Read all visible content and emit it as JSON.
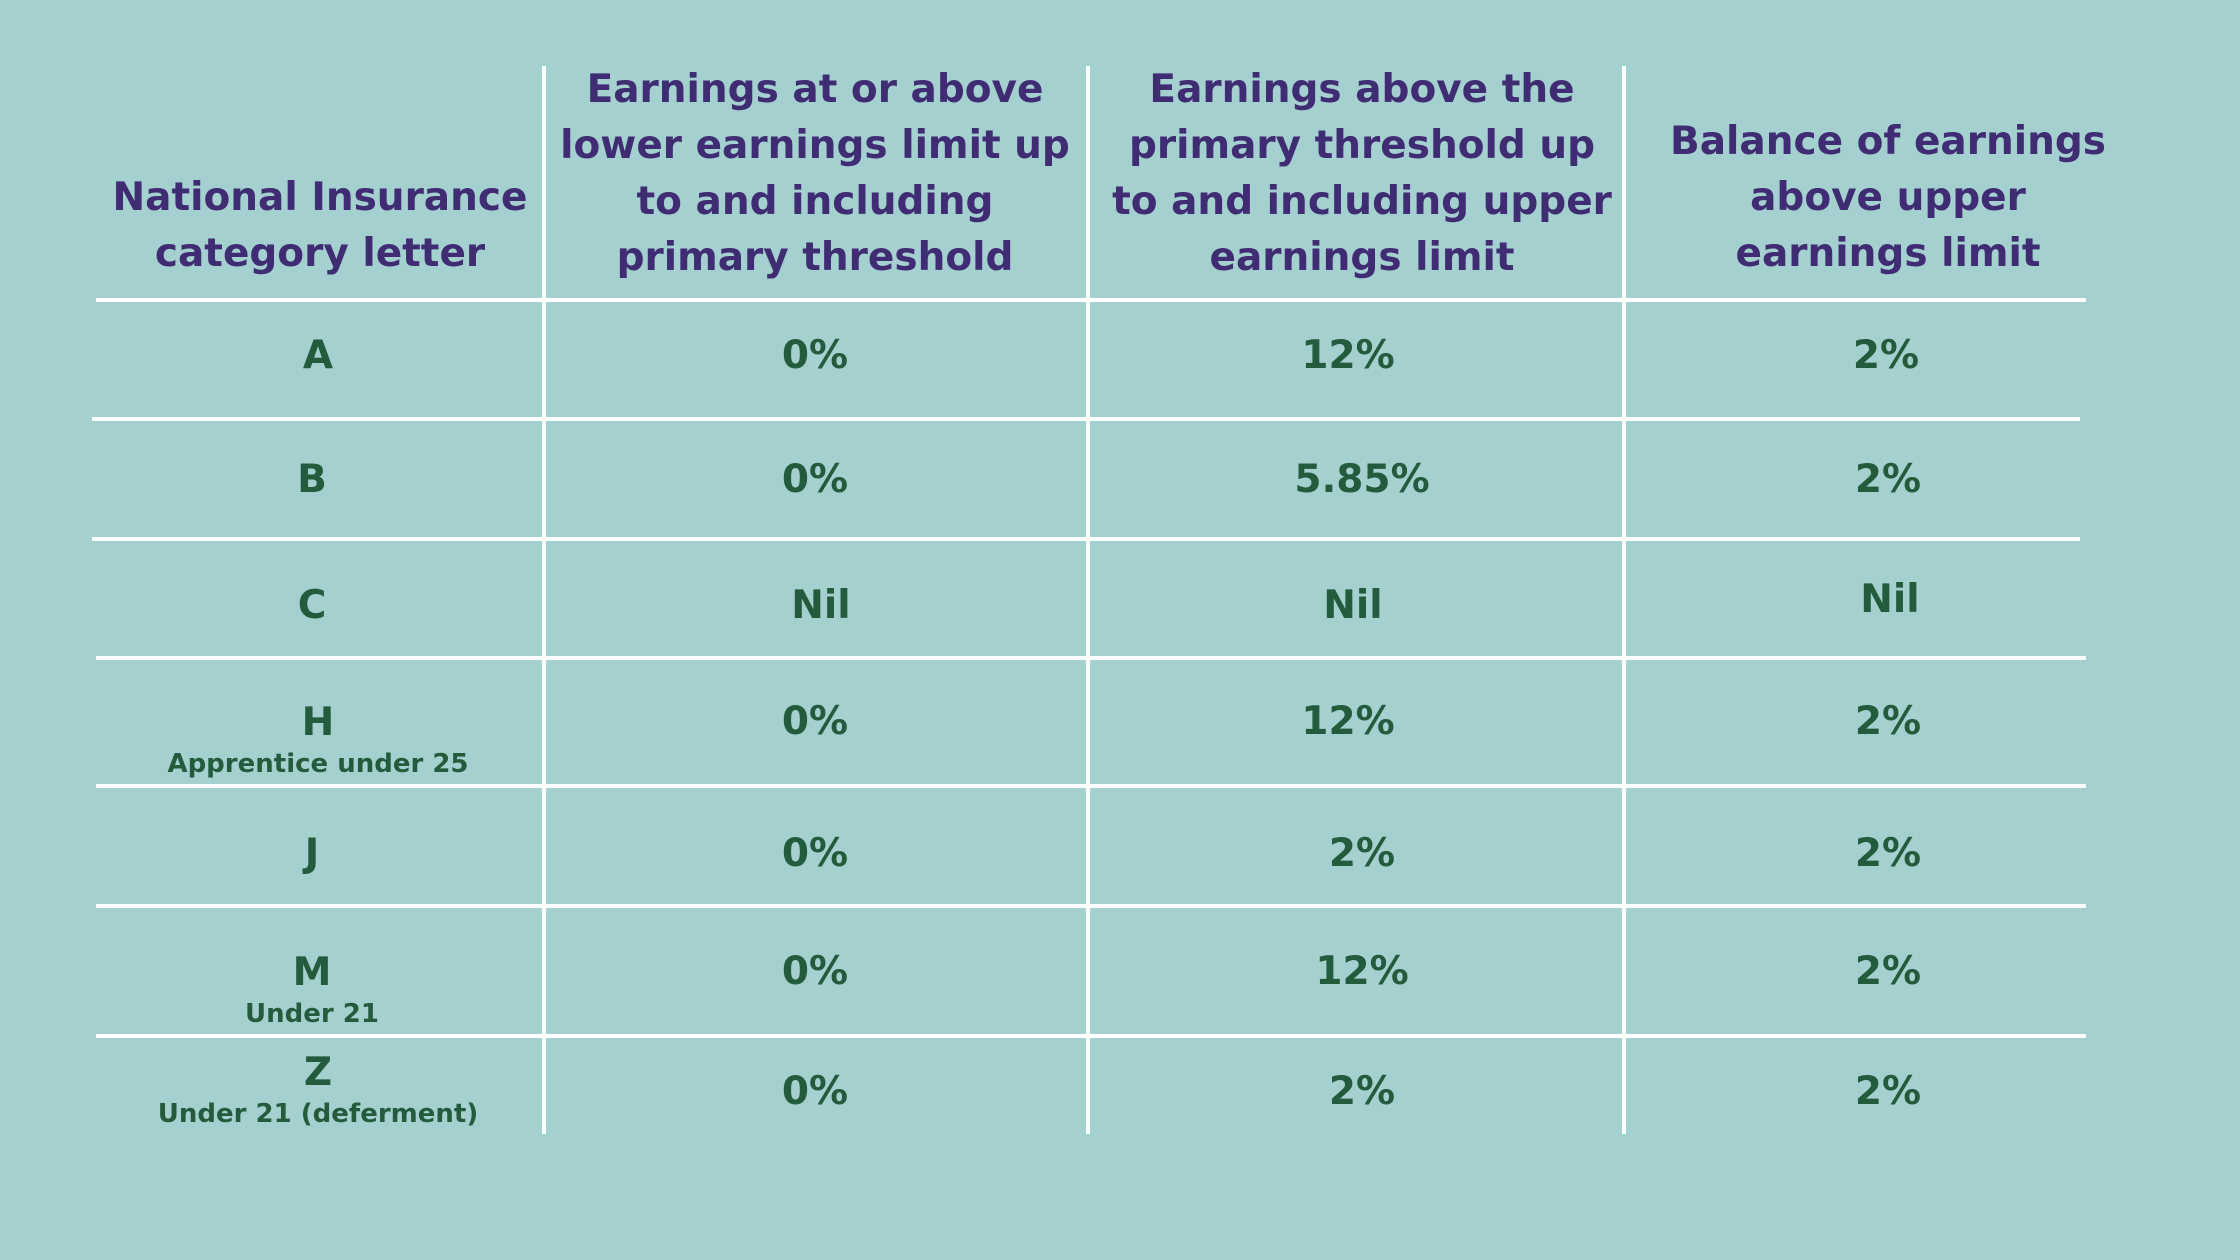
{
  "table": {
    "headers": [
      "National Insurance category letter",
      "Earnings at or above lower earnings limit up to and including primary threshold",
      "Earnings above the primary threshold up to and including upper earnings limit",
      "Balance of earnings above upper earnings limit"
    ],
    "rows": [
      {
        "letter": "A",
        "note": "",
        "lel_pt": "0%",
        "pt_uel": "12%",
        "above_uel": "2%"
      },
      {
        "letter": "B",
        "note": "",
        "lel_pt": "0%",
        "pt_uel": "5.85%",
        "above_uel": "2%"
      },
      {
        "letter": "C",
        "note": "",
        "lel_pt": "Nil",
        "pt_uel": "Nil",
        "above_uel": "Nil"
      },
      {
        "letter": "H",
        "note": "Apprentice under 25",
        "lel_pt": "0%",
        "pt_uel": "12%",
        "above_uel": "2%"
      },
      {
        "letter": "J",
        "note": "",
        "lel_pt": "0%",
        "pt_uel": "2%",
        "above_uel": "2%"
      },
      {
        "letter": "M",
        "note": "Under 21",
        "lel_pt": "0%",
        "pt_uel": "12%",
        "above_uel": "2%"
      },
      {
        "letter": "Z",
        "note": "Under 21 (deferment)",
        "lel_pt": "0%",
        "pt_uel": "2%",
        "above_uel": "2%"
      }
    ]
  },
  "colors": {
    "background": "#a5d0d0",
    "header_text": "#3f2c72",
    "value_text": "#225c3c",
    "grid_lines": "#ffffff"
  }
}
